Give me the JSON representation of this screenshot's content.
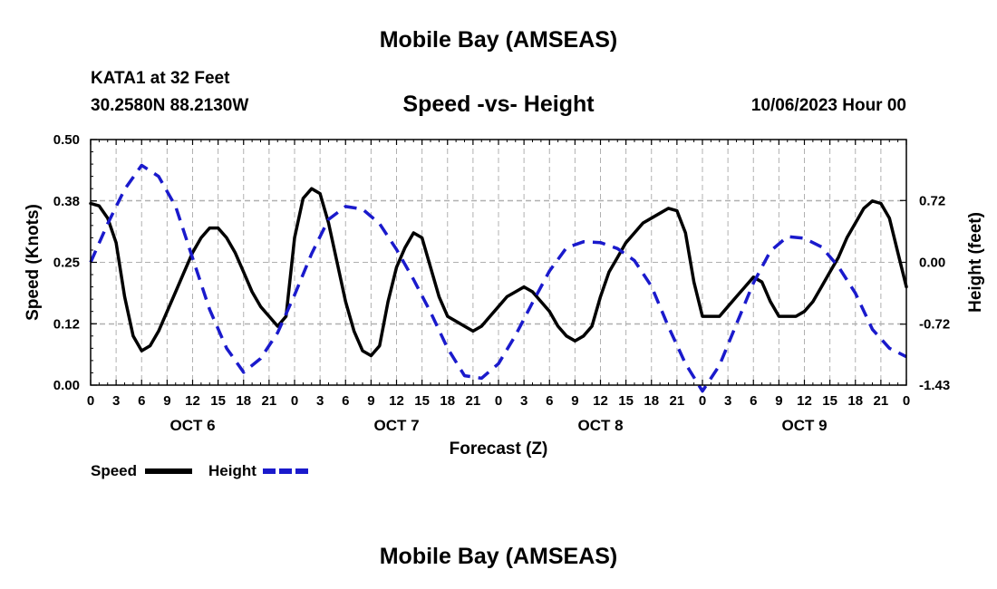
{
  "header": {
    "title": "Mobile Bay (AMSEAS)",
    "station": "KATA1 at 32 Feet",
    "coords": "30.2580N  88.2130W",
    "subtitle": "Speed -vs- Height",
    "runtime": "10/06/2023 Hour 00"
  },
  "footer": {
    "title": "Mobile Bay (AMSEAS)"
  },
  "chart_data": {
    "type": "line",
    "title": "Speed -vs- Height",
    "xlabel": "Forecast (Z)",
    "ylabel": "Speed (Knots)",
    "ylabel_right": "Height (feet)",
    "xlim": [
      0,
      96
    ],
    "ylim": [
      0,
      0.5
    ],
    "ylim_right": [
      -1.43,
      1.43
    ],
    "x_tick_step": 3,
    "x_tick_labels": [
      "0",
      "3",
      "6",
      "9",
      "12",
      "15",
      "18",
      "21",
      "0",
      "3",
      "6",
      "9",
      "12",
      "15",
      "18",
      "21",
      "0",
      "3",
      "6",
      "9",
      "12",
      "15",
      "18",
      "21",
      "0",
      "3",
      "6",
      "9",
      "12",
      "15",
      "18",
      "21",
      "0"
    ],
    "day_labels": [
      "OCT 6",
      "OCT 7",
      "OCT 8",
      "OCT 9"
    ],
    "y_ticks": [
      0.0,
      0.125,
      0.25,
      0.375,
      0.5
    ],
    "y_tick_labels": [
      "0.00",
      "0.12",
      "0.25",
      "0.38",
      "0.50"
    ],
    "y_right_ticks": [
      0.72,
      0.0,
      -0.72,
      -1.43
    ],
    "y_right_tick_labels": [
      "0.72",
      "0.00",
      "-0.72",
      "-1.43"
    ],
    "grid": true,
    "legend": [
      "Speed",
      "Height"
    ],
    "series": [
      {
        "name": "Speed",
        "axis": "left",
        "color": "#000000",
        "style": "solid",
        "x": [
          0,
          1,
          2,
          3,
          4,
          5,
          6,
          7,
          8,
          9,
          10,
          11,
          12,
          13,
          14,
          15,
          16,
          17,
          18,
          19,
          20,
          21,
          22,
          23,
          24,
          25,
          26,
          27,
          28,
          29,
          30,
          31,
          32,
          33,
          34,
          35,
          36,
          37,
          38,
          39,
          40,
          41,
          42,
          43,
          44,
          45,
          46,
          47,
          48,
          49,
          50,
          51,
          52,
          53,
          54,
          55,
          56,
          57,
          58,
          59,
          60,
          61,
          62,
          63,
          64,
          65,
          66,
          67,
          68,
          69,
          70,
          71,
          72,
          73,
          74,
          75,
          76,
          77,
          78,
          79,
          80,
          81,
          82,
          83,
          84,
          85,
          86,
          87,
          88,
          89,
          90,
          91,
          92,
          93,
          94,
          95,
          96
        ],
        "values": [
          0.37,
          0.365,
          0.34,
          0.29,
          0.18,
          0.1,
          0.07,
          0.08,
          0.11,
          0.15,
          0.19,
          0.23,
          0.27,
          0.3,
          0.32,
          0.32,
          0.3,
          0.27,
          0.23,
          0.19,
          0.16,
          0.14,
          0.12,
          0.14,
          0.3,
          0.38,
          0.4,
          0.39,
          0.33,
          0.25,
          0.17,
          0.11,
          0.07,
          0.06,
          0.08,
          0.17,
          0.24,
          0.28,
          0.31,
          0.3,
          0.24,
          0.18,
          0.14,
          0.13,
          0.12,
          0.11,
          0.12,
          0.14,
          0.16,
          0.18,
          0.19,
          0.2,
          0.19,
          0.17,
          0.15,
          0.12,
          0.1,
          0.09,
          0.1,
          0.12,
          0.18,
          0.23,
          0.26,
          0.29,
          0.31,
          0.33,
          0.34,
          0.35,
          0.36,
          0.355,
          0.31,
          0.21,
          0.14,
          0.14,
          0.14,
          0.16,
          0.18,
          0.2,
          0.22,
          0.21,
          0.17,
          0.14,
          0.14,
          0.14,
          0.15,
          0.17,
          0.2,
          0.23,
          0.26,
          0.3,
          0.33,
          0.36,
          0.375,
          0.37,
          0.34,
          0.27,
          0.2
        ]
      },
      {
        "name": "Height",
        "axis": "right",
        "color": "#1a1acc",
        "style": "dashed",
        "x": [
          0,
          2,
          4,
          6,
          8,
          10,
          12,
          14,
          16,
          18,
          20,
          22,
          24,
          26,
          28,
          30,
          32,
          34,
          36,
          38,
          40,
          42,
          44,
          46,
          48,
          50,
          52,
          54,
          56,
          58,
          60,
          62,
          64,
          66,
          68,
          70,
          72,
          74,
          76,
          78,
          80,
          82,
          84,
          86,
          88,
          90,
          92,
          94,
          96
        ],
        "values": [
          0.0,
          0.45,
          0.85,
          1.13,
          1.0,
          0.65,
          0.05,
          -0.55,
          -1.0,
          -1.28,
          -1.12,
          -0.82,
          -0.38,
          0.1,
          0.5,
          0.65,
          0.62,
          0.45,
          0.15,
          -0.2,
          -0.58,
          -1.0,
          -1.32,
          -1.35,
          -1.18,
          -0.85,
          -0.47,
          -0.1,
          0.17,
          0.24,
          0.23,
          0.16,
          0.02,
          -0.28,
          -0.75,
          -1.18,
          -1.5,
          -1.2,
          -0.72,
          -0.24,
          0.13,
          0.3,
          0.28,
          0.18,
          -0.05,
          -0.36,
          -0.78,
          -1.0,
          -1.1
        ]
      }
    ]
  }
}
